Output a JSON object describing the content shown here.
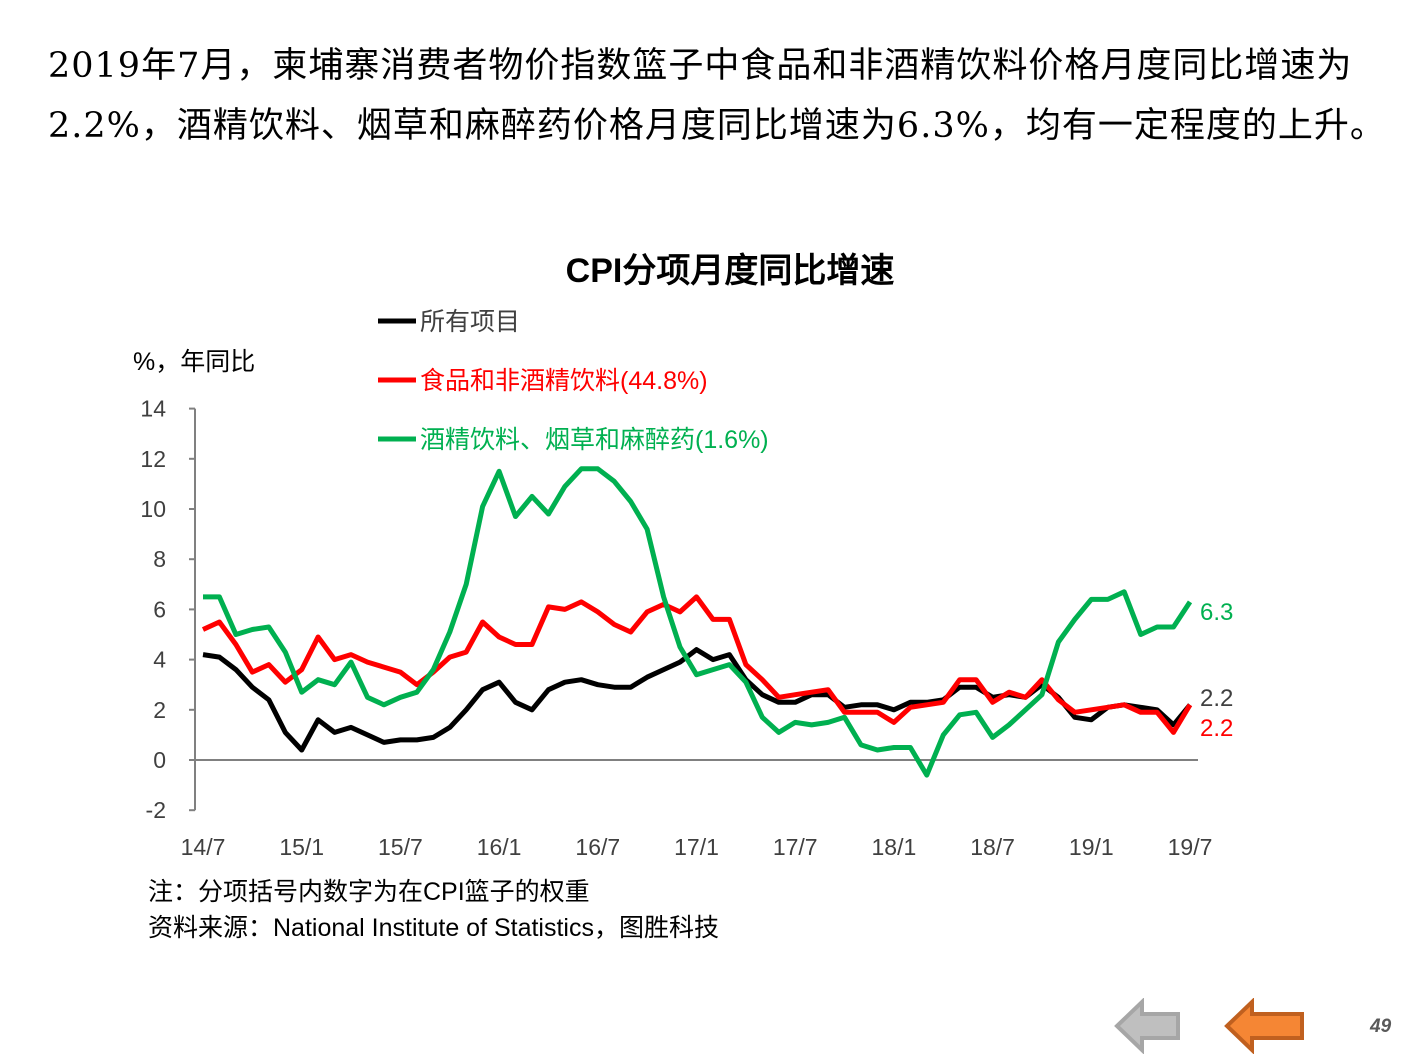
{
  "intro_text": "2019年7月，柬埔寨消费者物价指数篮子中食品和非酒精饮料价格月度同比增速为2.2%，酒精饮料、烟草和麻醉药价格月度同比增速为6.3%，均有一定程度的上升。",
  "chart_data": {
    "type": "line",
    "title": "CPI分项月度同比增速",
    "ylabel": "%，年同比",
    "xlabel": "",
    "ylim": [
      -2,
      14
    ],
    "yticks": [
      14,
      12,
      10,
      8,
      6,
      4,
      2,
      0,
      -2
    ],
    "xtick_labels": [
      "14/7",
      "15/1",
      "15/7",
      "16/1",
      "16/7",
      "17/1",
      "17/7",
      "18/1",
      "18/7",
      "19/1",
      "19/7"
    ],
    "x_start": "2014-07",
    "x_end": "2019-07",
    "grid": false,
    "legend_position": "top-left",
    "series": [
      {
        "name": "所有项目",
        "color": "#000000",
        "end_label": "2.2",
        "values": [
          4.2,
          4.1,
          3.6,
          2.9,
          2.4,
          1.1,
          0.4,
          1.6,
          1.1,
          1.3,
          1.0,
          0.7,
          0.8,
          0.8,
          0.9,
          1.3,
          2.0,
          2.8,
          3.1,
          2.3,
          2.0,
          2.8,
          3.1,
          3.2,
          3.0,
          2.9,
          2.9,
          3.3,
          3.6,
          3.9,
          4.4,
          4.0,
          4.2,
          3.2,
          2.6,
          2.3,
          2.3,
          2.6,
          2.6,
          2.1,
          2.2,
          2.2,
          2.0,
          2.3,
          2.3,
          2.4,
          2.9,
          2.9,
          2.5,
          2.6,
          2.5,
          3.0,
          2.5,
          1.7,
          1.6,
          2.1,
          2.2,
          2.1,
          2.0,
          1.4,
          2.2
        ]
      },
      {
        "name": "食品和非酒精饮料(44.8%)",
        "color": "#ff0000",
        "end_label": "2.2",
        "values": [
          5.2,
          5.5,
          4.6,
          3.5,
          3.8,
          3.1,
          3.6,
          4.9,
          4.0,
          4.2,
          3.9,
          3.7,
          3.5,
          3.0,
          3.5,
          4.1,
          4.3,
          5.5,
          4.9,
          4.6,
          4.6,
          6.1,
          6.0,
          6.3,
          5.9,
          5.4,
          5.1,
          5.9,
          6.2,
          5.9,
          6.5,
          5.6,
          5.6,
          3.8,
          3.2,
          2.5,
          2.6,
          2.7,
          2.8,
          1.9,
          1.9,
          1.9,
          1.5,
          2.1,
          2.2,
          2.3,
          3.2,
          3.2,
          2.3,
          2.7,
          2.5,
          3.2,
          2.4,
          1.9,
          2.0,
          2.1,
          2.2,
          1.9,
          1.9,
          1.1,
          2.2
        ]
      },
      {
        "name": "酒精饮料、烟草和麻醉药(1.6%)",
        "color": "#00b050",
        "end_label": "6.3",
        "values": [
          6.5,
          6.5,
          5.0,
          5.2,
          5.3,
          4.3,
          2.7,
          3.2,
          3.0,
          3.9,
          2.5,
          2.2,
          2.5,
          2.7,
          3.6,
          5.1,
          7.0,
          10.1,
          11.5,
          9.7,
          10.5,
          9.8,
          10.9,
          11.6,
          11.6,
          11.1,
          10.3,
          9.2,
          6.5,
          4.5,
          3.4,
          3.6,
          3.8,
          3.1,
          1.7,
          1.1,
          1.5,
          1.4,
          1.5,
          1.7,
          0.6,
          0.4,
          0.5,
          0.5,
          -0.6,
          1.0,
          1.8,
          1.9,
          0.9,
          1.4,
          2.0,
          2.6,
          4.7,
          5.6,
          6.4,
          6.4,
          6.7,
          5.0,
          5.3,
          5.3,
          6.3
        ]
      }
    ]
  },
  "notes": {
    "note": "注：分项括号内数字为在CPI篮子的权重",
    "source": "资料来源：National Institute of Statistics，图胜科技"
  },
  "nav": {
    "back_color": "#a6a6a6",
    "forward_color": "#f58634"
  },
  "page_number": "49"
}
